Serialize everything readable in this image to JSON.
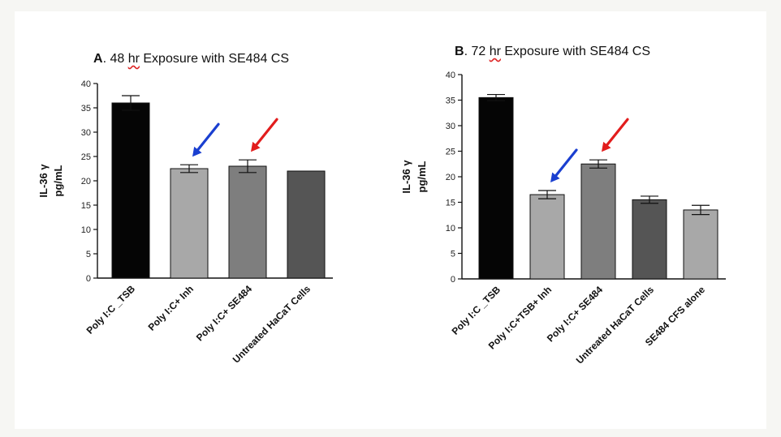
{
  "charts": [
    {
      "title_letter": "A",
      "title_pre": ". 48 ",
      "title_hr": "hr",
      "title_post": " Exposure with SE484 CS"
    },
    {
      "title_letter": "B",
      "title_pre": ". 72 ",
      "title_hr": "hr",
      "title_post": " Exposure with SE484 CS"
    }
  ],
  "chart_data": [
    {
      "type": "bar",
      "title": "A. 48 hr Exposure with SE484 CS",
      "ylabel_line1": "IL-36 γ",
      "ylabel_line2": "pg/mL",
      "ylim": [
        0,
        40
      ],
      "yticks": [
        0,
        5,
        10,
        15,
        20,
        25,
        30,
        35,
        40
      ],
      "categories": [
        "Poly I:C _TSB",
        "Poly I:C+ Inh",
        "Poly I:C+ SE484",
        "Untreated HaCaT Cells"
      ],
      "values": [
        36,
        22.5,
        23,
        22
      ],
      "errors": [
        1.5,
        0.8,
        1.3,
        0
      ],
      "colors": [
        "#050505",
        "#a8a8a8",
        "#7e7e7e",
        "#555555"
      ],
      "arrows": [
        {
          "category_index": 1,
          "color": "#1a3fd0"
        },
        {
          "category_index": 2,
          "color": "#e21d1d"
        }
      ]
    },
    {
      "type": "bar",
      "title": "B. 72 hr Exposure with SE484 CS",
      "ylabel_line1": "IL-36 γ",
      "ylabel_line2": "pg/mL",
      "ylim": [
        0,
        40
      ],
      "yticks": [
        0,
        5,
        10,
        15,
        20,
        25,
        30,
        35,
        40
      ],
      "categories": [
        "Poly I:C _TSB",
        "Poly I:C+TSB+ Inh",
        "Poly I:C+ SE484",
        "Untreated HaCaT Cells",
        "SE484 CFS alone"
      ],
      "values": [
        35.5,
        16.5,
        22.5,
        15.5,
        13.5
      ],
      "errors": [
        0.6,
        0.8,
        0.8,
        0.7,
        0.9
      ],
      "colors": [
        "#050505",
        "#a8a8a8",
        "#7e7e7e",
        "#555555",
        "#a8a8a8"
      ],
      "arrows": [
        {
          "category_index": 1,
          "color": "#1a3fd0"
        },
        {
          "category_index": 2,
          "color": "#e21d1d"
        }
      ]
    }
  ]
}
